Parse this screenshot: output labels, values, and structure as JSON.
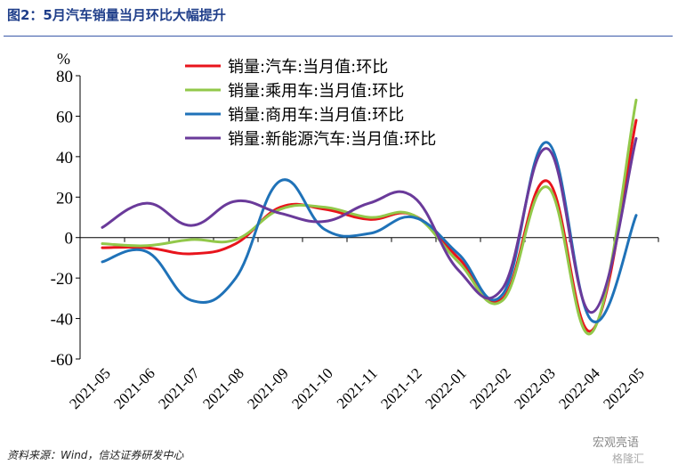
{
  "title": "图2：5月汽车销量当月环比大幅提升",
  "source": "资料来源：Wind，信达证券研发中心",
  "watermark": "宏观亮语",
  "watermark2": "格隆汇",
  "chart_data": {
    "type": "line",
    "ylabel": "%",
    "ylim": [
      -60,
      80
    ],
    "yticks": [
      80,
      60,
      40,
      20,
      0,
      -20,
      -40,
      -60
    ],
    "x": [
      "2021-05",
      "2021-06",
      "2021-07",
      "2021-08",
      "2021-09",
      "2021-10",
      "2021-11",
      "2021-12",
      "2022-01",
      "2022-02",
      "2022-03",
      "2022-04",
      "2022-05"
    ],
    "legend_position": "top-center",
    "series": [
      {
        "name": "销量:汽车:当月值:环比",
        "color": "#e8141c",
        "values": [
          -5,
          -5,
          -8,
          -3,
          15,
          14,
          9,
          11,
          -10,
          -30,
          28,
          -46,
          58
        ]
      },
      {
        "name": "销量:乘用车:当月值:环比",
        "color": "#92c84a",
        "values": [
          -3,
          -4,
          -1,
          -1,
          14,
          15,
          10,
          11,
          -12,
          -31,
          25,
          -47,
          68
        ]
      },
      {
        "name": "销量:商用车:当月值:环比",
        "color": "#1f72b8",
        "values": [
          -12,
          -7,
          -31,
          -20,
          28,
          4,
          2,
          10,
          -8,
          -28,
          47,
          -41,
          11
        ]
      },
      {
        "name": "销量:新能源汽车:当月值:环比",
        "color": "#6a3a9a",
        "values": [
          5,
          17,
          6,
          18,
          12,
          8,
          17,
          20,
          -16,
          -25,
          44,
          -37,
          49
        ]
      }
    ]
  }
}
